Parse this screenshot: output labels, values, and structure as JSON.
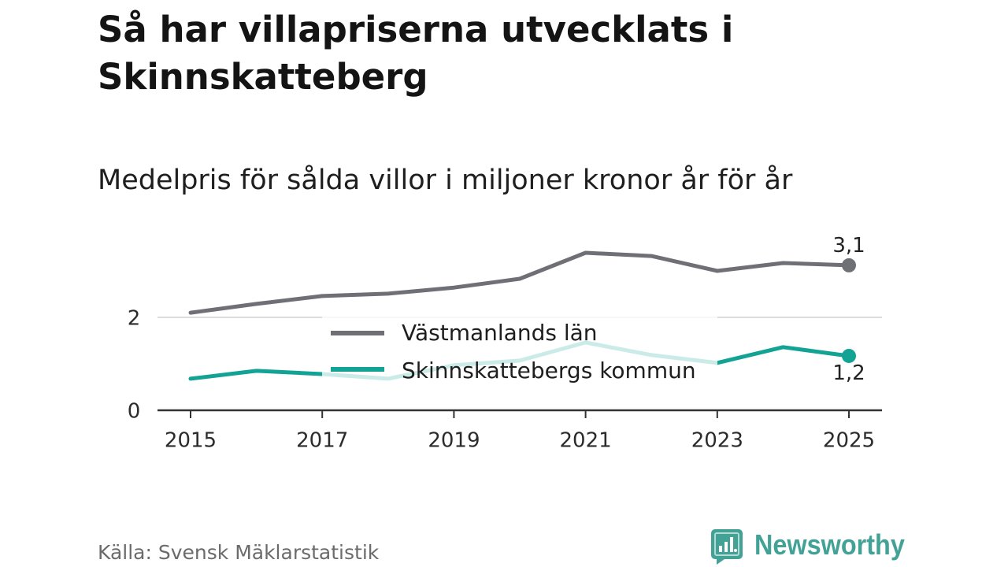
{
  "chart_data": {
    "type": "line",
    "title": "Så har villapriserna utvecklats i Skinnskatteberg",
    "subtitle": "Medelpris för sålda villor i miljoner kronor år för år",
    "x": [
      2015,
      2016,
      2017,
      2018,
      2019,
      2020,
      2021,
      2022,
      2023,
      2024,
      2025
    ],
    "x_ticks": [
      2015,
      2017,
      2019,
      2021,
      2023,
      2025
    ],
    "y_ticks": [
      0,
      2
    ],
    "xlim": [
      2015,
      2025
    ],
    "ylim": [
      0,
      3.5
    ],
    "grid": true,
    "legend": "center",
    "series": [
      {
        "name": "Västmanlands län",
        "color": "#6f6f76",
        "values": [
          2.1,
          2.29,
          2.46,
          2.51,
          2.64,
          2.83,
          3.39,
          3.32,
          3.0,
          3.17,
          3.12
        ],
        "end_label": "3,1"
      },
      {
        "name": "Skinnskattebergs kommun",
        "color": "#12a395",
        "values": [
          0.68,
          0.85,
          0.78,
          0.68,
          0.97,
          1.07,
          1.46,
          1.19,
          1.02,
          1.36,
          1.17
        ],
        "end_label": "1,2"
      }
    ]
  },
  "source": "Källa: Svensk Mäklarstatistik",
  "brand": {
    "name": "Newsworthy",
    "icon": "newsworthy-logo-icon",
    "color": "#43a296"
  }
}
